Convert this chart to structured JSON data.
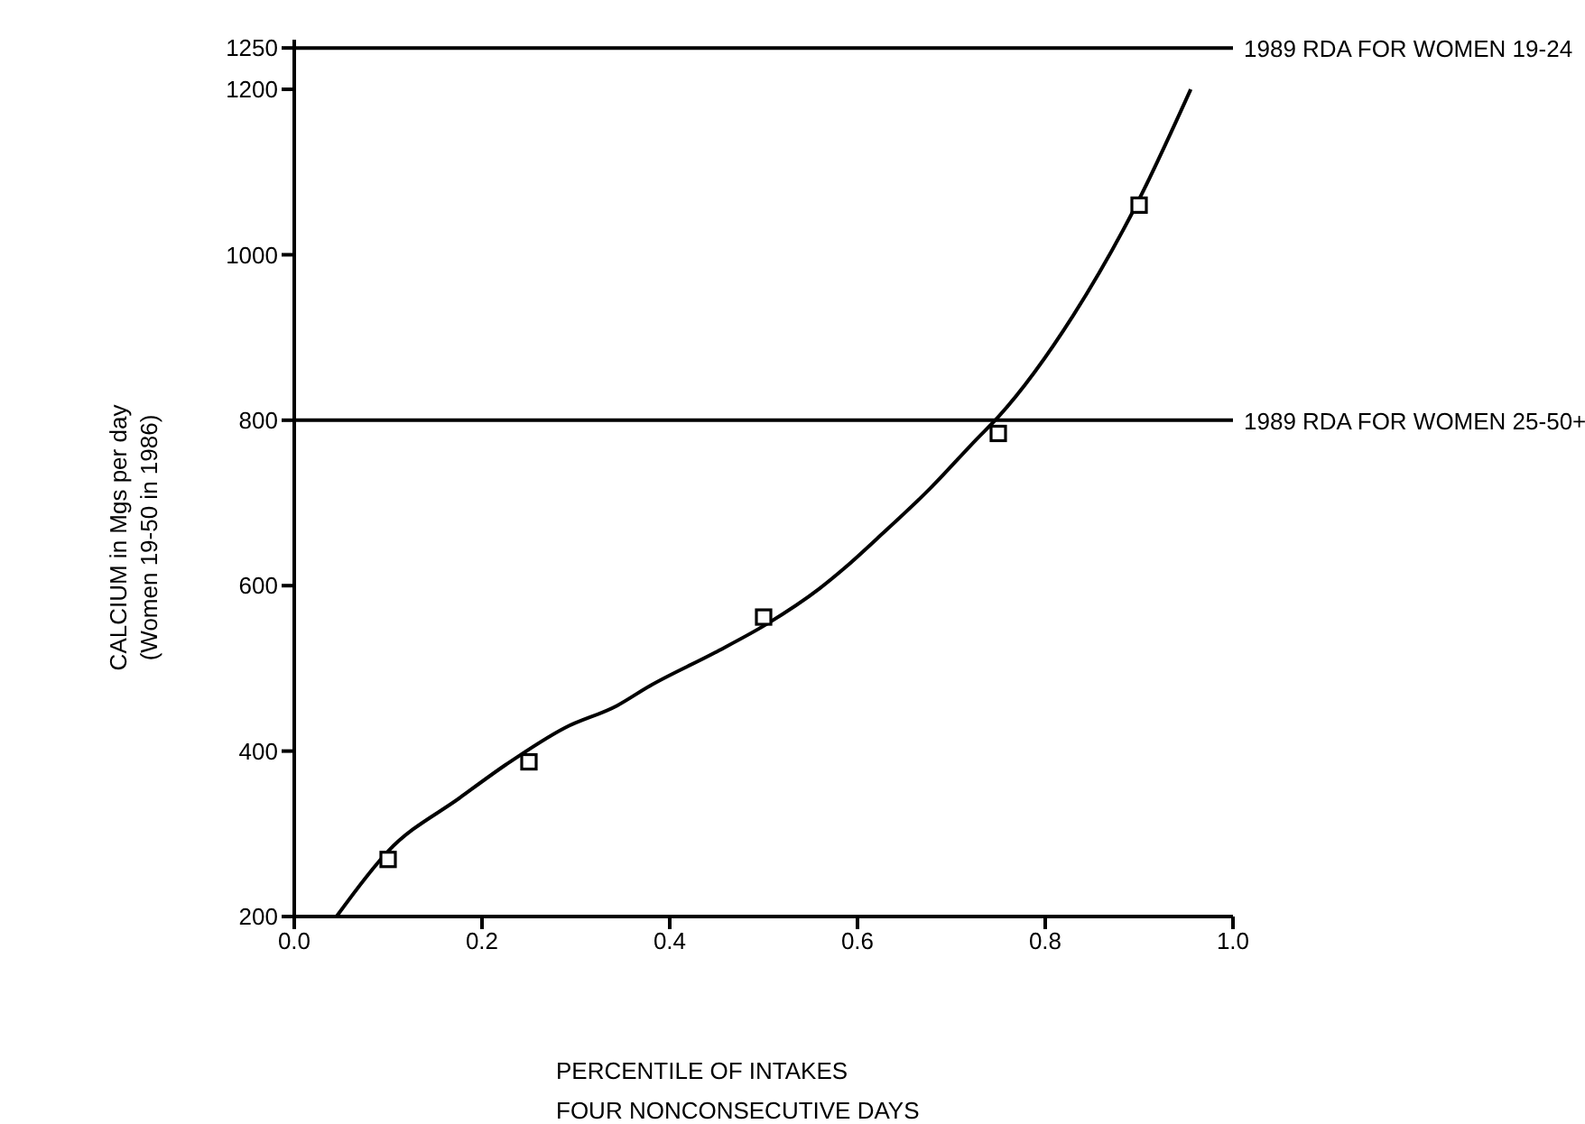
{
  "chart_data": {
    "type": "line",
    "xlabel": "PERCENTILE OF INTAKES\nFOUR NONCONSECUTIVE DAYS",
    "ylabel": "CALCIUM in Mgs per day\n(Women 19-50 in 1986)",
    "series": [
      {
        "color": "#000000",
        "marker": "none",
        "x": [
          0.045,
          0.1,
          0.177,
          0.226,
          0.288,
          0.344,
          0.379,
          0.448,
          0.504,
          0.559,
          0.587,
          0.621,
          0.677,
          0.726,
          0.75,
          0.83,
          0.896,
          0.955
        ],
        "values": [
          200,
          279,
          344,
          384,
          428,
          455,
          479,
          519,
          554,
          596,
          622,
          657,
          717,
          776,
          804,
          927,
          1058,
          1200
        ]
      },
      {
        "type": "scatter",
        "color": "#000000",
        "marker": "square",
        "x": [
          0.1,
          0.25,
          0.5,
          0.75,
          0.9
        ],
        "values": [
          269,
          387,
          562,
          784,
          1060
        ]
      }
    ],
    "xlim": [
      0,
      1
    ],
    "xticks": [
      {
        "value": 0,
        "label": "0.0"
      },
      {
        "value": 0.2,
        "label": "0.2"
      },
      {
        "value": 0.4,
        "label": "0.4"
      },
      {
        "value": 0.6,
        "label": "0.6"
      },
      {
        "value": 0.8,
        "label": "0.8"
      },
      {
        "value": 1,
        "label": "1.0"
      }
    ],
    "ylim": [
      200,
      1260
    ],
    "yticks": [
      200,
      400,
      600,
      800,
      1000,
      1200,
      1250
    ],
    "ref_lines": [
      {
        "axis": "y",
        "value": 1250,
        "label": "1989 RDA FOR WOMEN 19-24",
        "color": "#000000"
      },
      {
        "axis": "y",
        "value": 800,
        "label": "1989 RDA FOR WOMEN 25-50+",
        "color": "#000000"
      }
    ],
    "grid": false
  }
}
